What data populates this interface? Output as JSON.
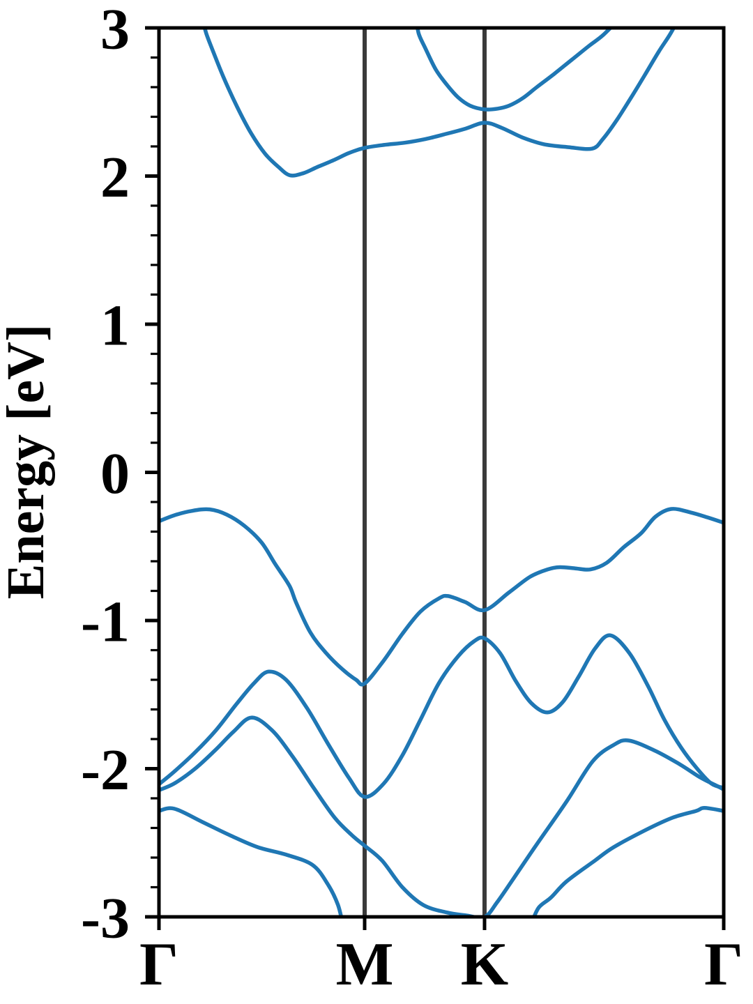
{
  "figure": {
    "background": "#ffffff",
    "description": "Electronic band structure plot along high-symmetry path"
  },
  "chart_data": {
    "type": "line",
    "title": "",
    "xlabel": "",
    "ylabel": "Energy [eV]",
    "ylim": [
      -3,
      3
    ],
    "xlim": [
      0,
      1
    ],
    "grid": false,
    "legend": null,
    "y_major_ticks": [
      {
        "label": "3",
        "value": 3
      },
      {
        "label": "2",
        "value": 2
      },
      {
        "label": "1",
        "value": 1
      },
      {
        "label": "0",
        "value": 0
      },
      {
        "label": "-1",
        "value": -1
      },
      {
        "label": "-2",
        "value": -2
      },
      {
        "label": "-3",
        "value": -3
      }
    ],
    "y_minor_step": 0.2,
    "x_ticks": [
      {
        "label": "Γ",
        "k": 0
      },
      {
        "label": "M",
        "k": 0.3642
      },
      {
        "label": "K",
        "k": 0.5765
      },
      {
        "label": "Γ",
        "k": 1.0
      }
    ],
    "high_symmetry_vlines": [
      0.3642,
      0.5765
    ],
    "colors": {
      "band": "#1f77b4",
      "symmetry_line": "#3a3a3a",
      "axis": "#000000"
    },
    "line_widths": {
      "band": 5.5,
      "symmetry_line": 6,
      "spine": 5
    },
    "series": [
      {
        "name": "conduction-band-2",
        "segments": [
          [
            [
              0.456,
              3.06
            ],
            [
              0.46,
              2.96
            ],
            [
              0.472,
              2.86
            ],
            [
              0.49,
              2.72
            ],
            [
              0.51,
              2.615
            ],
            [
              0.53,
              2.53
            ],
            [
              0.551,
              2.475
            ],
            [
              0.5765,
              2.45
            ],
            [
              0.6,
              2.455
            ],
            [
              0.62,
              2.475
            ],
            [
              0.644,
              2.525
            ],
            [
              0.669,
              2.6
            ],
            [
              0.7,
              2.69
            ],
            [
              0.731,
              2.785
            ],
            [
              0.762,
              2.88
            ],
            [
              0.786,
              2.95
            ],
            [
              0.815,
              3.06
            ]
          ]
        ]
      },
      {
        "name": "conduction-band-1",
        "segments": [
          [
            [
              0.077,
              3.06
            ],
            [
              0.084,
              2.96
            ],
            [
              0.095,
              2.85
            ],
            [
              0.114,
              2.67
            ],
            [
              0.138,
              2.47
            ],
            [
              0.163,
              2.29
            ],
            [
              0.188,
              2.15
            ],
            [
              0.212,
              2.06
            ],
            [
              0.232,
              2.005
            ],
            [
              0.256,
              2.02
            ],
            [
              0.28,
              2.06
            ],
            [
              0.311,
              2.11
            ],
            [
              0.336,
              2.155
            ],
            [
              0.3642,
              2.19
            ],
            [
              0.398,
              2.21
            ],
            [
              0.435,
              2.225
            ],
            [
              0.472,
              2.25
            ],
            [
              0.509,
              2.285
            ],
            [
              0.543,
              2.32
            ],
            [
              0.5765,
              2.36
            ],
            [
              0.607,
              2.325
            ],
            [
              0.644,
              2.26
            ],
            [
              0.681,
              2.215
            ],
            [
              0.725,
              2.195
            ],
            [
              0.767,
              2.185
            ],
            [
              0.786,
              2.25
            ],
            [
              0.811,
              2.38
            ],
            [
              0.836,
              2.53
            ],
            [
              0.86,
              2.68
            ],
            [
              0.885,
              2.84
            ],
            [
              0.904,
              2.95
            ],
            [
              0.92,
              3.06
            ]
          ]
        ]
      },
      {
        "name": "valence-band-1",
        "segments": [
          [
            [
              0,
              -0.33
            ],
            [
              0.027,
              -0.29
            ],
            [
              0.058,
              -0.26
            ],
            [
              0.09,
              -0.25
            ],
            [
              0.12,
              -0.285
            ],
            [
              0.151,
              -0.36
            ],
            [
              0.182,
              -0.475
            ],
            [
              0.206,
              -0.62
            ],
            [
              0.231,
              -0.765
            ],
            [
              0.243,
              -0.88
            ],
            [
              0.268,
              -1.08
            ],
            [
              0.296,
              -1.22
            ],
            [
              0.325,
              -1.33
            ],
            [
              0.349,
              -1.4
            ],
            [
              0.3642,
              -1.425
            ],
            [
              0.398,
              -1.27
            ],
            [
              0.431,
              -1.09
            ],
            [
              0.463,
              -0.94
            ],
            [
              0.496,
              -0.85
            ],
            [
              0.512,
              -0.835
            ],
            [
              0.542,
              -0.875
            ],
            [
              0.5765,
              -0.93
            ],
            [
              0.62,
              -0.81
            ],
            [
              0.657,
              -0.705
            ],
            [
              0.688,
              -0.655
            ],
            [
              0.71,
              -0.64
            ],
            [
              0.737,
              -0.648
            ],
            [
              0.764,
              -0.655
            ],
            [
              0.793,
              -0.61
            ],
            [
              0.823,
              -0.505
            ],
            [
              0.854,
              -0.41
            ],
            [
              0.879,
              -0.3
            ],
            [
              0.907,
              -0.247
            ],
            [
              0.941,
              -0.27
            ],
            [
              0.972,
              -0.305
            ],
            [
              1.0,
              -0.34
            ]
          ]
        ]
      },
      {
        "name": "valence-band-2",
        "segments": [
          [
            [
              0,
              -2.105
            ],
            [
              0.027,
              -2.02
            ],
            [
              0.064,
              -1.89
            ],
            [
              0.101,
              -1.74
            ],
            [
              0.138,
              -1.56
            ],
            [
              0.169,
              -1.42
            ],
            [
              0.194,
              -1.345
            ],
            [
              0.225,
              -1.4
            ],
            [
              0.262,
              -1.59
            ],
            [
              0.299,
              -1.83
            ],
            [
              0.336,
              -2.06
            ],
            [
              0.3642,
              -2.19
            ],
            [
              0.398,
              -2.1
            ],
            [
              0.431,
              -1.91
            ],
            [
              0.463,
              -1.67
            ],
            [
              0.496,
              -1.42
            ],
            [
              0.53,
              -1.24
            ],
            [
              0.558,
              -1.14
            ],
            [
              0.5765,
              -1.12
            ],
            [
              0.604,
              -1.22
            ],
            [
              0.632,
              -1.41
            ],
            [
              0.66,
              -1.56
            ],
            [
              0.688,
              -1.62
            ],
            [
              0.715,
              -1.55
            ],
            [
              0.743,
              -1.38
            ],
            [
              0.772,
              -1.19
            ],
            [
              0.799,
              -1.1
            ],
            [
              0.833,
              -1.22
            ],
            [
              0.867,
              -1.45
            ],
            [
              0.895,
              -1.67
            ],
            [
              0.925,
              -1.86
            ],
            [
              0.953,
              -2.0
            ],
            [
              0.978,
              -2.1
            ],
            [
              1.0,
              -2.13
            ]
          ]
        ]
      },
      {
        "name": "valence-band-3",
        "segments": [
          [
            [
              0,
              -2.145
            ],
            [
              0.027,
              -2.1
            ],
            [
              0.064,
              -2.0
            ],
            [
              0.101,
              -1.87
            ],
            [
              0.132,
              -1.75
            ],
            [
              0.164,
              -1.655
            ],
            [
              0.2,
              -1.74
            ],
            [
              0.237,
              -1.92
            ],
            [
              0.274,
              -2.13
            ],
            [
              0.311,
              -2.33
            ],
            [
              0.342,
              -2.45
            ],
            [
              0.3642,
              -2.52
            ],
            [
              0.395,
              -2.62
            ],
            [
              0.431,
              -2.8
            ],
            [
              0.468,
              -2.92
            ],
            [
              0.509,
              -2.97
            ],
            [
              0.543,
              -2.99
            ],
            [
              0.5765,
              -3.0
            ],
            [
              0.599,
              -2.9
            ],
            [
              0.628,
              -2.74
            ],
            [
              0.669,
              -2.51
            ],
            [
              0.722,
              -2.22
            ],
            [
              0.768,
              -1.95
            ],
            [
              0.805,
              -1.84
            ],
            [
              0.832,
              -1.81
            ],
            [
              0.879,
              -1.88
            ],
            [
              0.922,
              -1.97
            ],
            [
              0.959,
              -2.06
            ],
            [
              0.99,
              -2.12
            ],
            [
              1.0,
              -2.14
            ]
          ]
        ]
      },
      {
        "name": "valence-band-4",
        "segments": [
          [
            [
              0,
              -2.285
            ],
            [
              0.027,
              -2.27
            ],
            [
              0.077,
              -2.36
            ],
            [
              0.126,
              -2.45
            ],
            [
              0.175,
              -2.53
            ],
            [
              0.225,
              -2.58
            ],
            [
              0.272,
              -2.65
            ],
            [
              0.299,
              -2.78
            ],
            [
              0.317,
              -2.92
            ],
            [
              0.326,
              -3.06
            ]
          ],
          [
            [
              0.658,
              -3.06
            ],
            [
              0.672,
              -2.94
            ],
            [
              0.694,
              -2.87
            ],
            [
              0.722,
              -2.76
            ],
            [
              0.772,
              -2.62
            ],
            [
              0.805,
              -2.53
            ],
            [
              0.864,
              -2.41
            ],
            [
              0.91,
              -2.33
            ],
            [
              0.951,
              -2.285
            ],
            [
              0.966,
              -2.265
            ],
            [
              1.0,
              -2.285
            ]
          ]
        ]
      }
    ]
  }
}
